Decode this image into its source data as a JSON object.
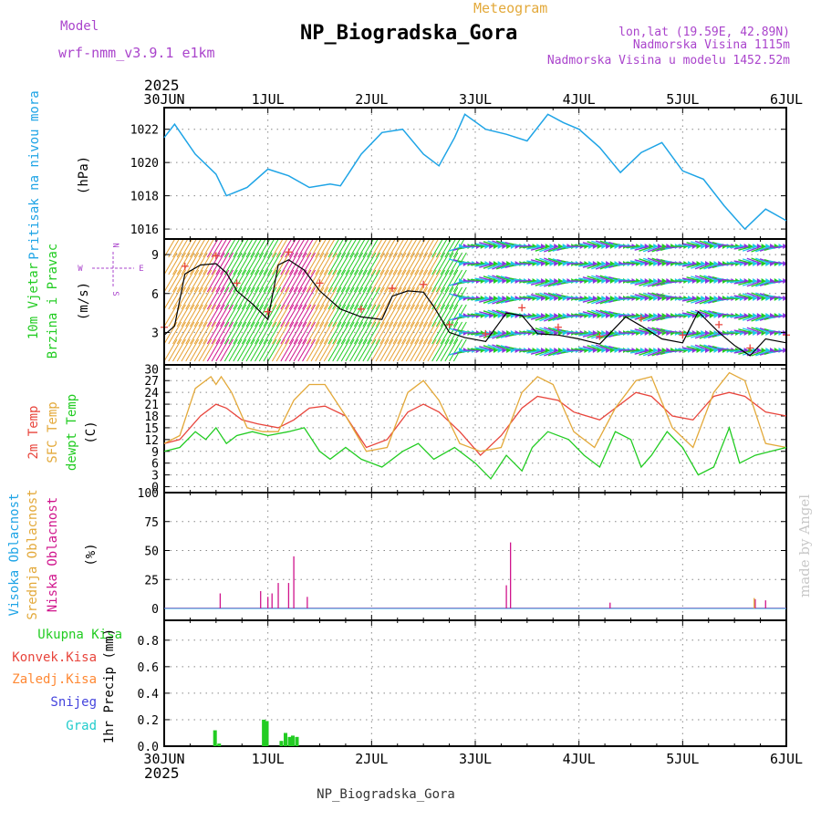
{
  "header": {
    "model_label": "Model",
    "model_name": "wrf-nmm_v3.9.1 e1km",
    "meteogram_label": "Meteogram",
    "station_title": "NP_Biogradska_Gora",
    "lonlat": "lon,lat (19.59E, 42.89N)",
    "altitude": "Nadmorska Visina 1115m",
    "model_altitude": "Nadmorska Visina u modelu 1452.52m",
    "year_top": "2025",
    "year_bottom": "2025",
    "footer_title": "NP_Biogradska_Gora",
    "watermark": "made by Angel"
  },
  "colors": {
    "pressure": "#1ea4e6",
    "wind_label": "#22cc22",
    "temp2m": "#e8453c",
    "sfc": "#e3a93a",
    "dewpt": "#22cc22",
    "high_cloud": "#1ea4e6",
    "mid_cloud": "#e3a93a",
    "low_cloud": "#d0148c",
    "purple": "#aa44cc",
    "precip_total": "#22cc22",
    "precip_conv": "#e8453c",
    "precip_frozen": "#ff8833",
    "snow": "#4444dd",
    "graupel": "#22cccc"
  },
  "chart_data": [
    {
      "type": "line",
      "id": "pressure",
      "ylabel_side": "Pritisak na nivou mora",
      "unit": "(hPa)",
      "x_ticks": [
        "30JUN",
        "1JUL",
        "2JUL",
        "3JUL",
        "4JUL",
        "5JUL",
        "6JUL"
      ],
      "y_ticks": [
        1016,
        1018,
        1020,
        1022
      ],
      "ylim": [
        1015.4,
        1023.3
      ],
      "x": [
        0,
        0.1,
        0.3,
        0.5,
        0.6,
        0.8,
        1.0,
        1.2,
        1.4,
        1.6,
        1.7,
        1.9,
        2.1,
        2.3,
        2.5,
        2.65,
        2.8,
        2.9,
        3.1,
        3.3,
        3.5,
        3.7,
        3.85,
        4.0,
        4.2,
        4.4,
        4.6,
        4.8,
        5.0,
        5.2,
        5.4,
        5.6,
        5.8,
        6.0
      ],
      "y": [
        1021.5,
        1022.3,
        1020.5,
        1019.3,
        1018.0,
        1018.5,
        1019.6,
        1019.2,
        1018.5,
        1018.7,
        1018.6,
        1020.5,
        1021.8,
        1022.0,
        1020.5,
        1019.8,
        1021.5,
        1022.9,
        1022.0,
        1021.7,
        1021.3,
        1022.9,
        1022.4,
        1022.0,
        1020.9,
        1019.4,
        1020.6,
        1021.2,
        1019.5,
        1019.0,
        1017.4,
        1016.0,
        1017.2,
        1016.5
      ]
    },
    {
      "type": "line",
      "id": "wind",
      "ylabel_side": [
        "10m Vjetar",
        "Brzina i Pravac"
      ],
      "unit": "(m/s)",
      "compass": [
        "N",
        "W",
        "E",
        "S"
      ],
      "y_ticks": [
        3,
        6,
        9
      ],
      "ylim": [
        0.5,
        10.2
      ],
      "series": [
        {
          "name": "speed",
          "x": [
            0,
            0.1,
            0.2,
            0.35,
            0.5,
            0.6,
            0.7,
            0.85,
            1.0,
            1.1,
            1.2,
            1.35,
            1.5,
            1.7,
            1.9,
            2.1,
            2.2,
            2.35,
            2.5,
            2.6,
            2.75,
            2.9,
            3.1,
            3.3,
            3.45,
            3.6,
            3.8,
            4.0,
            4.2,
            4.45,
            4.6,
            4.8,
            5.0,
            5.15,
            5.35,
            5.5,
            5.65,
            5.8,
            6.0
          ],
          "y": [
            2.8,
            3.5,
            7.5,
            8.2,
            8.3,
            7.6,
            6.2,
            5.2,
            4.0,
            8.2,
            8.6,
            7.8,
            6.2,
            4.8,
            4.2,
            4.0,
            5.8,
            6.2,
            6.1,
            5.0,
            3.0,
            2.6,
            2.3,
            4.5,
            4.3,
            2.9,
            2.8,
            2.5,
            2.1,
            4.2,
            3.5,
            2.5,
            2.2,
            4.6,
            3.0,
            2.0,
            1.2,
            2.5,
            2.2
          ]
        }
      ]
    },
    {
      "type": "line",
      "id": "temperature",
      "ylabel_side": [
        "2m Temp",
        "SFC Temp",
        "dewpt Temp"
      ],
      "unit": "(C)",
      "y_ticks": [
        0,
        3,
        6,
        9,
        12,
        15,
        18,
        21,
        24,
        27,
        30
      ],
      "ylim": [
        -1.5,
        31
      ],
      "series": [
        {
          "name": "2m Temp",
          "x": [
            0,
            0.15,
            0.35,
            0.5,
            0.6,
            0.75,
            0.9,
            1.1,
            1.25,
            1.4,
            1.55,
            1.75,
            1.95,
            2.15,
            2.35,
            2.5,
            2.65,
            2.85,
            3.05,
            3.25,
            3.45,
            3.6,
            3.8,
            3.95,
            4.2,
            4.35,
            4.55,
            4.7,
            4.9,
            5.1,
            5.3,
            5.45,
            5.6,
            5.8,
            6.0
          ],
          "y": [
            11,
            12,
            18,
            21,
            20,
            17,
            16,
            15,
            17,
            20,
            20.5,
            18,
            10,
            12,
            19,
            21,
            19,
            14,
            8,
            13,
            20,
            23,
            22,
            19,
            17,
            20,
            24,
            23,
            18,
            17,
            23,
            24,
            23,
            19,
            18
          ]
        },
        {
          "name": "SFC Temp",
          "x": [
            0,
            0.15,
            0.3,
            0.45,
            0.5,
            0.55,
            0.65,
            0.8,
            0.95,
            1.1,
            1.25,
            1.4,
            1.55,
            1.75,
            1.95,
            2.15,
            2.35,
            2.5,
            2.65,
            2.85,
            3.05,
            3.25,
            3.45,
            3.6,
            3.75,
            3.95,
            4.15,
            4.35,
            4.55,
            4.7,
            4.9,
            5.1,
            5.3,
            5.45,
            5.6,
            5.8,
            6.0
          ],
          "y": [
            11,
            13,
            25,
            28,
            26,
            28,
            24,
            15,
            14,
            14,
            22,
            26,
            26,
            18,
            9,
            10,
            24,
            27,
            22,
            11,
            9,
            10,
            24,
            28,
            26,
            14,
            10,
            20,
            27,
            28,
            15,
            10,
            24,
            29,
            27,
            11,
            10
          ]
        },
        {
          "name": "dewpt Temp",
          "x": [
            0,
            0.15,
            0.3,
            0.4,
            0.5,
            0.6,
            0.7,
            0.85,
            1.0,
            1.2,
            1.35,
            1.5,
            1.6,
            1.75,
            1.9,
            2.1,
            2.3,
            2.45,
            2.6,
            2.8,
            3.0,
            3.15,
            3.3,
            3.45,
            3.55,
            3.7,
            3.9,
            4.05,
            4.2,
            4.35,
            4.5,
            4.6,
            4.7,
            4.85,
            5.0,
            5.15,
            5.3,
            5.45,
            5.55,
            5.7,
            5.85,
            6.0
          ],
          "y": [
            9,
            10,
            14,
            12,
            15,
            11,
            13,
            14,
            13,
            14,
            15,
            9,
            7,
            10,
            7,
            5,
            9,
            11,
            7,
            10,
            6,
            2,
            8,
            4,
            10,
            14,
            12,
            8,
            5,
            14,
            12,
            5,
            8,
            14,
            10,
            3,
            5,
            15,
            6,
            8,
            9,
            10
          ]
        }
      ]
    },
    {
      "type": "bar",
      "id": "cloud",
      "ylabel_side": [
        "Visoka Oblacnost",
        "Srednja Oblacnost",
        "Niska Oblacnost"
      ],
      "unit": "(%)",
      "y_ticks": [
        0,
        25,
        50,
        75,
        100
      ],
      "ylim": [
        0,
        100
      ],
      "series": [
        {
          "name": "Niska Oblacnost",
          "x": [
            0.54,
            0.93,
            1.0,
            1.04,
            1.1,
            1.2,
            1.25,
            1.38,
            3.3,
            3.34,
            4.3,
            5.7,
            5.8
          ],
          "values": [
            13,
            15,
            10,
            13,
            22,
            22,
            45,
            10,
            20,
            57,
            5,
            8,
            7
          ]
        },
        {
          "name": "Srednja Oblacnost",
          "x": [
            5.69
          ],
          "values": [
            9
          ]
        }
      ]
    },
    {
      "type": "bar",
      "id": "precip",
      "ylabel_side": [
        "Ukupna Kisa",
        "Konvek.Kisa",
        "Zaledj.Kisa",
        "Snijeg",
        "Grad"
      ],
      "unit": "1hr Precip (mm)",
      "x_ticks": [
        "30JUN",
        "1JUL",
        "2JUL",
        "3JUL",
        "4JUL",
        "5JUL",
        "6JUL"
      ],
      "y_ticks": [
        0,
        0.2,
        0.4,
        0.6,
        0.8
      ],
      "ylim": [
        0,
        0.95
      ],
      "series": [
        {
          "name": "Ukupna Kisa",
          "x": [
            0.49,
            0.53,
            0.96,
            0.99,
            1.13,
            1.17,
            1.21,
            1.24,
            1.28
          ],
          "values": [
            0.12,
            0.02,
            0.2,
            0.19,
            0.04,
            0.1,
            0.07,
            0.08,
            0.07
          ]
        }
      ]
    }
  ]
}
